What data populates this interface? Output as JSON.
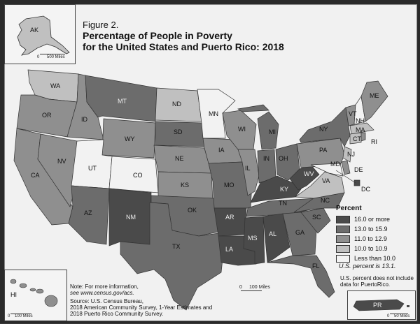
{
  "figure": {
    "number": "Figure 2.",
    "title_line1": "Percentage of People in Poverty",
    "title_line2": "for the United States and Puerto Rico: 2018"
  },
  "legend": {
    "title": "Percent",
    "items": [
      {
        "label": "16.0 or more",
        "color": "#4a4a4a"
      },
      {
        "label": "13.0 to 15.9",
        "color": "#6c6c6c"
      },
      {
        "label": "11.0 to 12.9",
        "color": "#8f8f8f"
      },
      {
        "label": "10.0 to 10.9",
        "color": "#c0c0c0"
      },
      {
        "label": "Less than 10.0",
        "color": "#f2f2f2"
      }
    ],
    "us_percent": "U.S. percent is 13.1."
  },
  "pr_note": "U.S. percent does not include data for PuertoRico.",
  "note": {
    "line1": "Note: For more information,",
    "line2": "see www.census.gov/acs.",
    "line3": "Source: U.S. Census Bureau,",
    "line4": "2018 American Community Survey, 1-Year Estimates and",
    "line5": "2018 Puerto Rico Community Survey."
  },
  "scales": {
    "ak": "500 Miles",
    "main": "100 Miles",
    "hi": "100 Miles",
    "pr": "50 Miles",
    "zero": "0"
  },
  "states": {
    "AK": "AK",
    "HI": "HI",
    "PR": "PR",
    "WA": "WA",
    "OR": "OR",
    "CA": "CA",
    "NV": "NV",
    "ID": "ID",
    "MT": "MT",
    "WY": "WY",
    "UT": "UT",
    "CO": "CO",
    "AZ": "AZ",
    "NM": "NM",
    "ND": "ND",
    "SD": "SD",
    "NE": "NE",
    "KS": "KS",
    "OK": "OK",
    "TX": "TX",
    "MN": "MN",
    "IA": "IA",
    "MO": "MO",
    "AR": "AR",
    "LA": "LA",
    "WI": "WI",
    "IL": "IL",
    "MI": "MI",
    "IN": "IN",
    "OH": "OH",
    "KY": "KY",
    "TN": "TN",
    "MS": "MS",
    "AL": "AL",
    "GA": "GA",
    "FL": "FL",
    "SC": "SC",
    "NC": "NC",
    "VA": "VA",
    "WV": "WV",
    "PA": "PA",
    "NY": "NY",
    "VT": "VT",
    "NH": "NH",
    "ME": "ME",
    "MA": "MA",
    "CT": "CT",
    "RI": "RI",
    "NJ": "NJ",
    "DE": "DE",
    "MD": "MD",
    "DC": "DC"
  }
}
